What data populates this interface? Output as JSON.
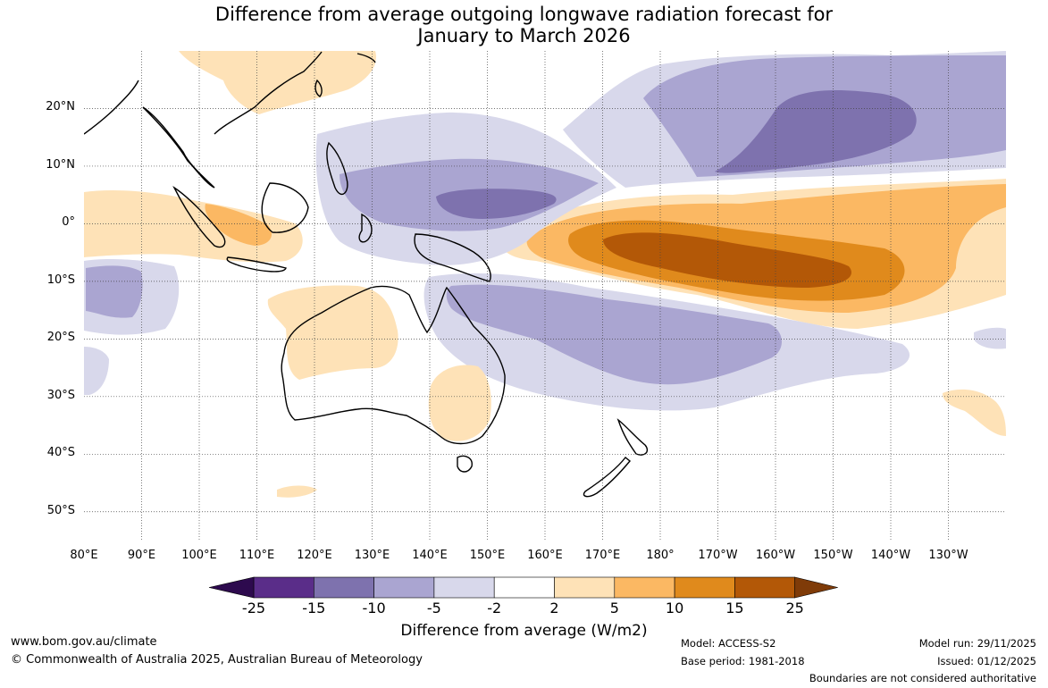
{
  "title": {
    "line1": "Difference from average outgoing longwave radiation forecast for",
    "line2": "January to March 2026"
  },
  "map": {
    "lon_labels": [
      "80°E",
      "90°E",
      "100°E",
      "110°E",
      "120°E",
      "130°E",
      "140°E",
      "150°E",
      "160°E",
      "170°E",
      "180°",
      "170°W",
      "160°W",
      "150°W",
      "140°W",
      "130°W"
    ],
    "lat_labels": [
      "20°N",
      "10°N",
      "0°",
      "10°S",
      "20°S",
      "30°S",
      "40°S",
      "50°S"
    ],
    "lon_range": [
      80,
      240
    ],
    "lat_range": [
      -55,
      30
    ]
  },
  "colorbar": {
    "ticks": [
      "-25",
      "-15",
      "-10",
      "-5",
      "-2",
      "2",
      "5",
      "10",
      "15",
      "25"
    ],
    "colors": [
      "#5a2d89",
      "#7e72ae",
      "#aaa5d1",
      "#d8d8eb",
      "#ffffff",
      "#fee2b7",
      "#fbb863",
      "#e08a1c",
      "#b35807"
    ],
    "under_color": "#2d0a4e",
    "over_color": "#7f3b08",
    "label": "Difference from average (W/m2)"
  },
  "footer": {
    "website": "www.bom.gov.au/climate",
    "copyright": "© Commonwealth of Australia 2025, Australian Bureau of Meteorology",
    "model": "Model: ACCESS-S2",
    "base_period": "Base period: 1981-2018",
    "model_run": "Model run: 29/11/2025",
    "issued": "Issued: 01/12/2025",
    "disclaimer": "Boundaries are not considered authoritative"
  }
}
